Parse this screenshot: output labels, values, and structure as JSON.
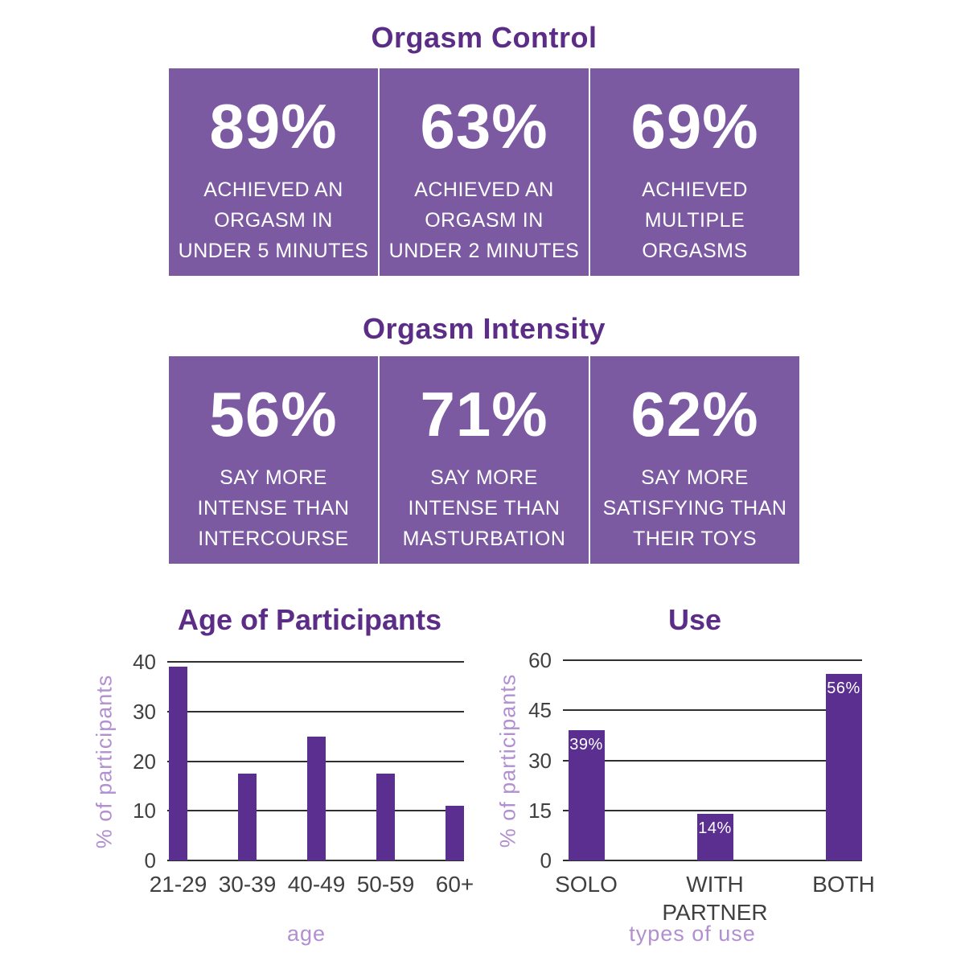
{
  "colors": {
    "box_purple": "#7B5AA2",
    "bar_purple": "#5A2F90",
    "heading_purple": "#5C2D87",
    "light_purple": "#B18FD0",
    "axis_line": "#2F2F2F",
    "tick_text": "#404040",
    "stat_text": "#FFFFFF"
  },
  "sections": {
    "control": {
      "title": "Orgasm Control",
      "boxes": [
        {
          "value": "89%",
          "lines": [
            "ACHIEVED AN",
            "ORGASM IN",
            "UNDER 5 MINUTES"
          ]
        },
        {
          "value": "63%",
          "lines": [
            "ACHIEVED AN",
            "ORGASM IN",
            "UNDER 2 MINUTES"
          ]
        },
        {
          "value": "69%",
          "lines": [
            "ACHIEVED",
            "MULTIPLE",
            "ORGASMS"
          ]
        }
      ]
    },
    "intensity": {
      "title": "Orgasm Intensity",
      "boxes": [
        {
          "value": "56%",
          "lines": [
            "SAY MORE",
            "INTENSE THAN",
            "INTERCOURSE"
          ]
        },
        {
          "value": "71%",
          "lines": [
            "SAY MORE",
            "INTENSE THAN",
            "MASTURBATION"
          ]
        },
        {
          "value": "62%",
          "lines": [
            "SAY MORE",
            "SATISFYING THAN",
            "THEIR TOYS"
          ]
        }
      ]
    }
  },
  "chart_data": [
    {
      "type": "bar",
      "title": "Age of Participants",
      "categories": [
        "21-29",
        "30-39",
        "40-49",
        "50-59",
        "60+"
      ],
      "values": [
        39,
        17.5,
        25,
        17.5,
        11
      ],
      "bar_labels": [],
      "xlabel": "age",
      "ylabel": "% of participants",
      "ylim": [
        0,
        40
      ],
      "yticks": [
        0,
        10,
        20,
        30,
        40
      ],
      "grid": true,
      "legend": false
    },
    {
      "type": "bar",
      "title": "Use",
      "categories": [
        "SOLO",
        "WITH PARTNER",
        "BOTH"
      ],
      "values": [
        39,
        14,
        56
      ],
      "bar_labels": [
        "39%",
        "14%",
        "56%"
      ],
      "xlabel": "types of use",
      "ylabel": "% of participants",
      "ylim": [
        0,
        60
      ],
      "yticks": [
        0,
        15,
        30,
        45,
        60
      ],
      "grid": true,
      "legend": false
    }
  ]
}
